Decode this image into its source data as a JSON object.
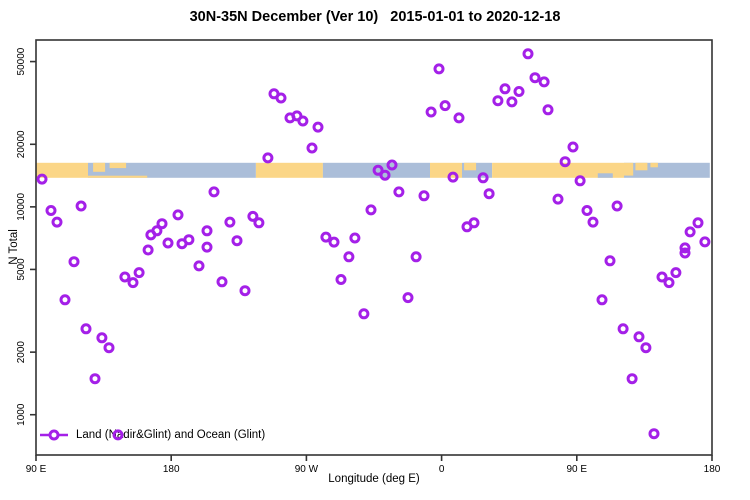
{
  "chart_data": {
    "type": "scatter",
    "title": "30N-35N December (Ver 10)   2015-01-01 to 2020-12-18",
    "xlabel": "Longitude (deg E)",
    "ylabel": "N Total",
    "legend": {
      "label": "Land (Nadir&Glint) and Ocean (Glint)",
      "position": "bottom-left"
    },
    "grid": false,
    "x_axis": {
      "range": [
        90,
        540
      ],
      "ticks": [
        90,
        180,
        270,
        360,
        450,
        540
      ],
      "tick_labels": [
        "90 E",
        "180",
        "90 W",
        "0",
        "90 E",
        "180"
      ]
    },
    "y_axis": {
      "scale": "log",
      "range": [
        640,
        63500
      ],
      "ticks": [
        1000,
        2000,
        5000,
        10000,
        20000,
        50000
      ],
      "tick_labels": [
        "1000",
        "2000",
        "5000",
        "10000",
        "20000",
        "50000"
      ]
    },
    "marker": {
      "shape": "open-circle",
      "color": "#A420E8"
    },
    "points": [
      [
        94,
        13600
      ],
      [
        100,
        9600
      ],
      [
        104,
        8450
      ],
      [
        120,
        10100
      ],
      [
        164.6,
        6200
      ],
      [
        166.5,
        7330
      ],
      [
        170.5,
        7670
      ],
      [
        173.9,
        8300
      ],
      [
        177.9,
        6700
      ],
      [
        184.5,
        9150
      ],
      [
        187.2,
        6650
      ],
      [
        191.8,
        6950
      ],
      [
        198.5,
        5200
      ],
      [
        203.8,
        7670
      ],
      [
        203.8,
        6400
      ],
      [
        248.4,
        35000
      ],
      [
        253.1,
        33400
      ],
      [
        259.1,
        26800
      ],
      [
        263.7,
        27400
      ],
      [
        267.7,
        25900
      ],
      [
        277.7,
        24200
      ],
      [
        273.7,
        19200
      ],
      [
        244.4,
        17200
      ],
      [
        208.5,
        11800
      ],
      [
        219.1,
        8450
      ],
      [
        234.4,
        9000
      ],
      [
        238.4,
        8380
      ],
      [
        223.8,
        6870
      ],
      [
        283,
        7150
      ],
      [
        288.4,
        6770
      ],
      [
        302.3,
        7080
      ],
      [
        313,
        9670
      ],
      [
        417.5,
        54500
      ],
      [
        358.3,
        46100
      ],
      [
        422.2,
        41800
      ],
      [
        428.2,
        39900
      ],
      [
        402.2,
        37000
      ],
      [
        411.5,
        35900
      ],
      [
        397.5,
        32400
      ],
      [
        406.8,
        32000
      ],
      [
        430.8,
        29300
      ],
      [
        362.3,
        30700
      ],
      [
        353,
        28600
      ],
      [
        371.6,
        26800
      ],
      [
        327,
        15900
      ],
      [
        317.7,
        15000
      ],
      [
        322.3,
        14200
      ],
      [
        367.6,
        13900
      ],
      [
        387.6,
        13800
      ],
      [
        331.6,
        11800
      ],
      [
        348.3,
        11300
      ],
      [
        391.6,
        11570
      ],
      [
        381.6,
        8380
      ],
      [
        376.9,
        8020
      ],
      [
        447.5,
        19400
      ],
      [
        442.2,
        16500
      ],
      [
        452.2,
        13350
      ],
      [
        437.5,
        10900
      ],
      [
        456.8,
        9600
      ],
      [
        460.8,
        8450
      ],
      [
        476.8,
        10100
      ],
      [
        530.7,
        8380
      ],
      [
        525.4,
        7580
      ],
      [
        535.3,
        6780
      ],
      [
        522,
        6350
      ],
      [
        115.3,
        5450
      ],
      [
        149.2,
        4600
      ],
      [
        154.6,
        4320
      ],
      [
        158.6,
        4830
      ],
      [
        109.3,
        3570
      ],
      [
        123.3,
        2590
      ],
      [
        133.9,
        2345
      ],
      [
        138.6,
        2100
      ],
      [
        129.3,
        1490
      ],
      [
        144.6,
        800
      ],
      [
        213.8,
        4360
      ],
      [
        229.1,
        3950
      ],
      [
        298.3,
        5750
      ],
      [
        293,
        4470
      ],
      [
        308.3,
        3060
      ],
      [
        343,
        5750
      ],
      [
        337.6,
        3660
      ],
      [
        472.1,
        5500
      ],
      [
        522,
        6000
      ],
      [
        506.7,
        4600
      ],
      [
        516,
        4830
      ],
      [
        511.4,
        4320
      ],
      [
        466.8,
        3570
      ],
      [
        480.8,
        2590
      ],
      [
        491.4,
        2370
      ],
      [
        496,
        2100
      ],
      [
        486.8,
        1490
      ],
      [
        501.4,
        810
      ]
    ],
    "map_band": {
      "value_top": 16300,
      "value_bottom": 13800,
      "land_color": "#FBD687",
      "ocean_color": "#ABBED9",
      "segments": [
        {
          "from": 90,
          "to": 124.6,
          "type": "land"
        },
        {
          "from": 124.6,
          "to": 236.4,
          "type": "ocean"
        },
        {
          "from": 236.4,
          "to": 281,
          "type": "land"
        },
        {
          "from": 281,
          "to": 352.3,
          "type": "ocean"
        },
        {
          "from": 352.3,
          "to": 373.6,
          "type": "land"
        },
        {
          "from": 373.6,
          "to": 393.6,
          "type": "ocean"
        },
        {
          "from": 393.6,
          "to": 481.4,
          "type": "land"
        },
        {
          "from": 481.4,
          "to": 538.5,
          "type": "ocean"
        }
      ],
      "patches": [
        {
          "from": 128,
          "to": 136,
          "type": "land",
          "anchor": "top",
          "frac": 0.6
        },
        {
          "from": 139,
          "to": 150,
          "type": "land",
          "anchor": "top",
          "frac": 0.35
        },
        {
          "from": 124.6,
          "to": 164,
          "type": "land",
          "anchor": "bottom",
          "frac": 0.14
        },
        {
          "from": 375,
          "to": 383,
          "type": "land",
          "anchor": "top",
          "frac": 0.5
        },
        {
          "from": 464,
          "to": 474,
          "type": "ocean",
          "anchor": "bottom",
          "frac": 0.3
        },
        {
          "from": 481.4,
          "to": 487.5,
          "type": "land",
          "anchor": "top",
          "frac": 0.85
        },
        {
          "from": 489,
          "to": 497,
          "type": "land",
          "anchor": "top",
          "frac": 0.5
        },
        {
          "from": 499,
          "to": 504,
          "type": "land",
          "anchor": "top",
          "frac": 0.3
        }
      ]
    }
  },
  "colors": {
    "axis": "#333333",
    "text": "#000000",
    "background": "#ffffff"
  }
}
